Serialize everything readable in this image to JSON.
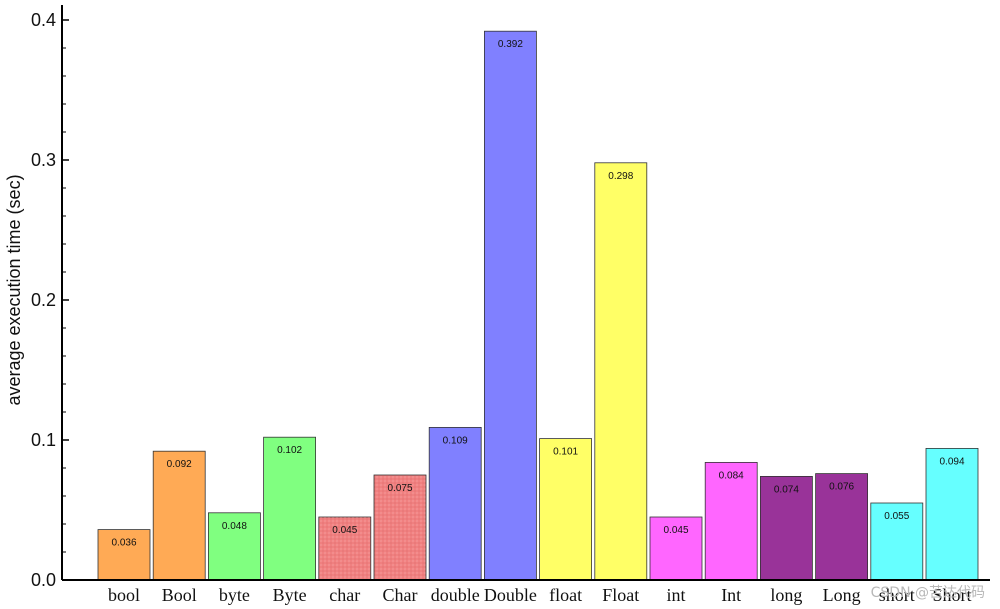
{
  "chart_data": {
    "type": "bar",
    "ylabel": "average execution time (sec)",
    "xlabel": "",
    "ylim": [
      0,
      0.4
    ],
    "yticks": [
      "0.0",
      "0.1",
      "0.2",
      "0.3",
      "0.4"
    ],
    "categories": [
      "bool",
      "Bool",
      "byte",
      "Byte",
      "char",
      "Char",
      "double",
      "Double",
      "float",
      "Float",
      "int",
      "Int",
      "long",
      "Long",
      "short",
      "Short"
    ],
    "values": [
      0.036,
      0.092,
      0.048,
      0.102,
      0.045,
      0.075,
      0.109,
      0.392,
      0.101,
      0.298,
      0.045,
      0.084,
      0.074,
      0.076,
      0.055,
      0.094
    ],
    "value_labels": [
      "0.036",
      "0.092",
      "0.048",
      "0.102",
      "0.045",
      "0.075",
      "0.109",
      "0.392",
      "0.101",
      "0.298",
      "0.045",
      "0.084",
      "0.074",
      "0.076",
      "0.055",
      "0.094"
    ],
    "colors": [
      "#ffaa55",
      "#ffaa55",
      "#80ff80",
      "#80ff80",
      "#f08080",
      "#f08080",
      "#8080ff",
      "#8080ff",
      "#ffff66",
      "#ffff66",
      "#ff66ff",
      "#ff66ff",
      "#993399",
      "#993399",
      "#66ffff",
      "#66ffff"
    ],
    "grid": false
  },
  "watermark": "CSDN @苦达代码"
}
